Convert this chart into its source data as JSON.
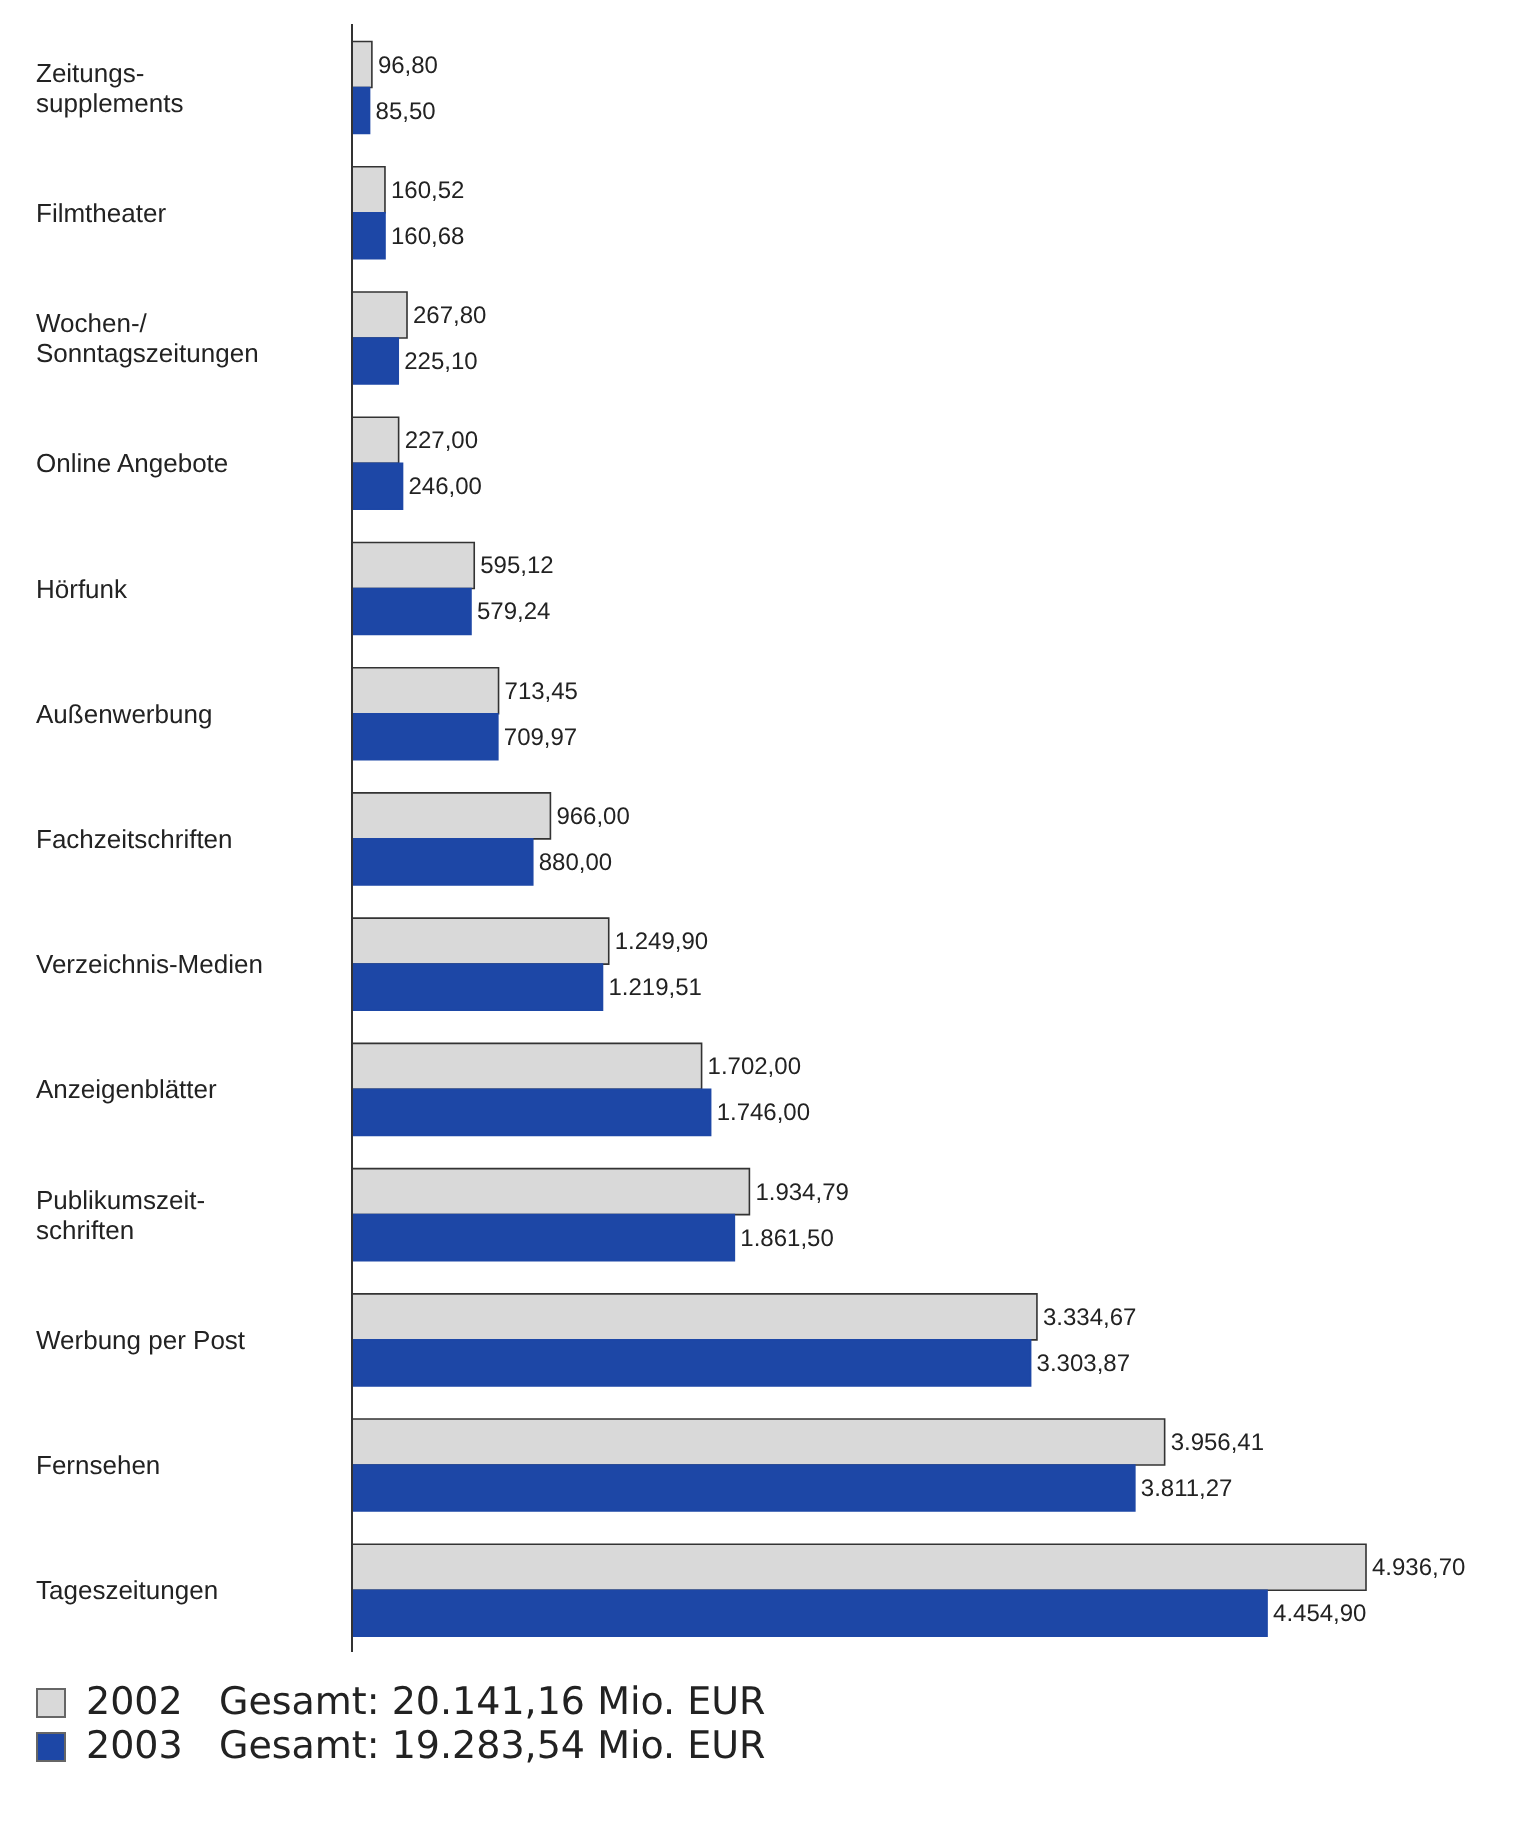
{
  "chart_data": {
    "type": "bar",
    "orientation": "horizontal",
    "legend": "bottom",
    "categories": [
      "Zeitungs-\nsupplements",
      "Filmtheater",
      "Wochen-/\nSonntagszeitungen",
      "Online Angebote",
      "Hörfunk",
      "Außenwerbung",
      "Fachzeitschriften",
      "Verzeichnis-Medien",
      "Anzeigenblätter",
      "Publikumszeit-\nschriften",
      "Werbung per Post",
      "Fernsehen",
      "Tageszeitungen"
    ],
    "series": [
      {
        "name": "2002   Gesamt: 20.141,16 Mio. EUR",
        "color": "#d9d9d9",
        "values": [
          96.8,
          160.52,
          267.8,
          227.0,
          595.12,
          713.45,
          966.0,
          1249.9,
          1702.0,
          1934.79,
          3334.67,
          3956.41,
          4936.7
        ],
        "value_labels": [
          "96,80",
          "160,52",
          "267,80",
          "227,00",
          "595,12",
          "713,45",
          "966,00",
          "1.249,90",
          "1.702,00",
          "1.934,79",
          "3.334,67",
          "3.956,41",
          "4.936,70"
        ]
      },
      {
        "name": "2003   Gesamt: 19.283,54 Mio. EUR",
        "color": "#1d47a6",
        "values": [
          85.5,
          160.68,
          225.1,
          246.0,
          579.24,
          709.97,
          880.0,
          1219.51,
          1746.0,
          1861.5,
          3303.87,
          3811.27,
          4454.9
        ],
        "value_labels": [
          "85,50",
          "160,68",
          "225,10",
          "246,00",
          "579,24",
          "709,97",
          "880,00",
          "1.219,51",
          "1.746,00",
          "1.861,50",
          "3.303,87",
          "3.811,27",
          "4.454,90"
        ]
      }
    ]
  }
}
